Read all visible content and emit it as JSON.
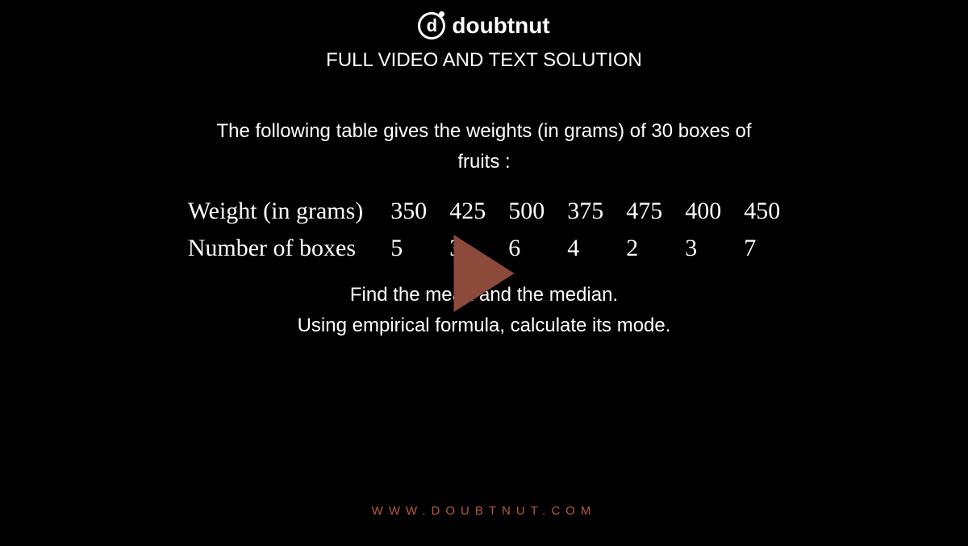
{
  "logo": {
    "icon_letter": "d",
    "brand_text": "doubtnut"
  },
  "subtitle": "FULL VIDEO AND TEXT SOLUTION",
  "content": {
    "intro_line1": "The following table gives the weights (in grams) of 30 boxes of",
    "intro_line2": "fruits :",
    "table": {
      "row1_label": "Weight (in grams)",
      "row1_values": [
        "350",
        "425",
        "500",
        "375",
        "475",
        "400",
        "450"
      ],
      "row2_label": "Number of boxes",
      "row2_values": [
        "5",
        "3",
        "6",
        "4",
        "2",
        "3",
        "7"
      ]
    },
    "instruction_line1": "Find the mean and the median.",
    "instruction_line2": "Using empirical formula, calculate its mode."
  },
  "footer_url": "WWW.DOUBTNUT.COM",
  "colors": {
    "background": "#000000",
    "text_primary": "#ffffff",
    "play_button": "#8b4a3a",
    "footer_accent": "#b85a3e"
  }
}
